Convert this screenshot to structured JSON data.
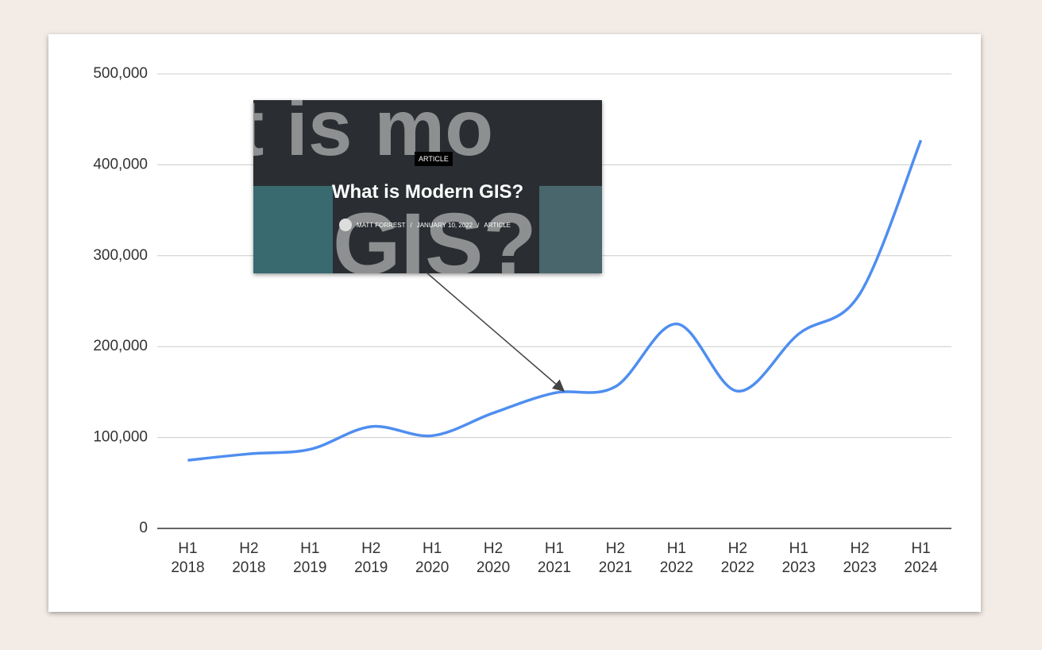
{
  "chart_data": {
    "type": "line",
    "categories": [
      "H1\n2018",
      "H2\n2018",
      "H1\n2019",
      "H2\n2019",
      "H1\n2020",
      "H2\n2020",
      "H1\n2021",
      "H2\n2021",
      "H1\n2022",
      "H2\n2022",
      "H1\n2023",
      "H2\n2023",
      "H1\n2024"
    ],
    "values": [
      75000,
      82000,
      87000,
      112000,
      102000,
      127000,
      149000,
      156000,
      225000,
      151000,
      214000,
      258000,
      427000
    ],
    "color": "#4f8ef0",
    "ylim": [
      0,
      500000
    ],
    "yticks": [
      0,
      {
        "value": 100000,
        "label": "100,000"
      },
      {
        "value": 200000,
        "label": "200,000"
      },
      {
        "value": 300000,
        "label": "300,000"
      },
      {
        "value": 400000,
        "label": "400,000"
      },
      {
        "value": 500000,
        "label": "500,000"
      }
    ],
    "grid": true,
    "annotation": {
      "background_text_top": "t is mo",
      "background_text_bottom": "GIS?",
      "badge": "ARTICLE",
      "title": "What is Modern GIS?",
      "meta": [
        "MATT FORREST",
        "/",
        "JANUARY 10, 2022",
        "/",
        "ARTICLE"
      ]
    }
  }
}
